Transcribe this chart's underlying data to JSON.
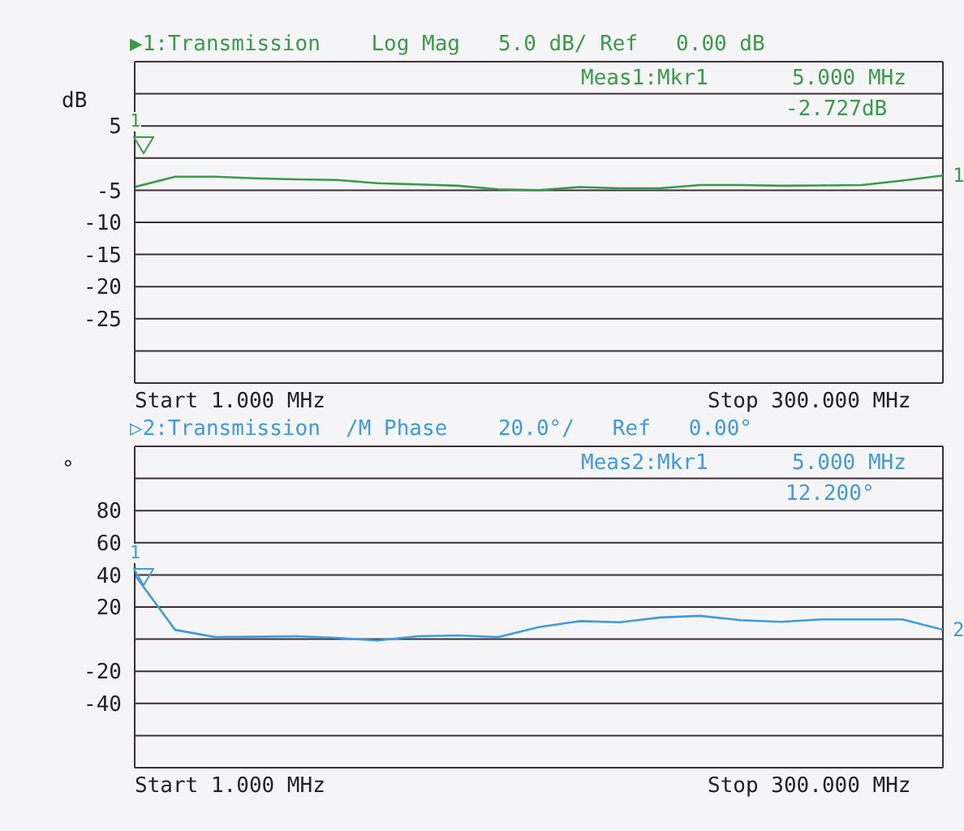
{
  "chart_data": [
    {
      "type": "line",
      "title": "▶1:Transmission    Log Mag   5.0 dB/ Ref   0.00 dB",
      "ylabel": "dB",
      "categories": [
        null,
        null,
        null,
        null,
        null,
        null,
        null,
        null,
        null,
        null,
        null,
        null,
        null,
        null,
        null,
        null,
        null,
        null,
        null,
        null,
        null
      ],
      "ylim": [
        -35,
        15
      ],
      "yticks": [
        {
          "value": 15,
          "label": null
        },
        {
          "value": 10,
          "label": null
        },
        5,
        {
          "value": 0,
          "label": null
        },
        -5,
        -10,
        -15,
        -20,
        -25,
        {
          "value": -30,
          "label": null
        },
        {
          "value": -35,
          "label": null
        }
      ],
      "tick_labels": "y",
      "grid": true,
      "marker": "none",
      "line_style": "solid",
      "series": [
        {
          "name": "1",
          "color": "#3a9a4a",
          "values": [
            -4.5,
            -2.9,
            -2.9,
            -3.15,
            -3.3,
            -3.4,
            -3.9,
            -4.1,
            -4.3,
            -4.85,
            -5.0,
            -4.5,
            -4.7,
            -4.7,
            -4.2,
            -4.2,
            -4.3,
            -4.25,
            -4.2,
            -3.5,
            -2.7
          ]
        }
      ],
      "annotations": [
        "Meas1:Mkr1",
        "5.000 MHz",
        "-2.727dB",
        "Start 1.000 MHz",
        "Stop 300.000 MHz",
        "1"
      ]
    },
    {
      "type": "line",
      "title": "▷2:Transmission  /M Phase    20.0°/   Ref   0.00°",
      "ylabel": "°",
      "categories": [
        null,
        null,
        null,
        null,
        null,
        null,
        null,
        null,
        null,
        null,
        null,
        null,
        null,
        null,
        null,
        null,
        null,
        null,
        null,
        null,
        null
      ],
      "ylim": [
        -80,
        120
      ],
      "yticks": [
        {
          "value": 120,
          "label": null
        },
        {
          "value": 100,
          "label": null
        },
        80,
        60,
        40,
        20,
        {
          "value": 0,
          "label": null
        },
        -20,
        -40,
        {
          "value": -60,
          "label": null
        },
        {
          "value": -80,
          "label": null
        }
      ],
      "tick_labels": "y",
      "grid": true,
      "marker": "none",
      "line_style": "solid",
      "series": [
        {
          "name": "2",
          "color": "#3f9ae0",
          "values": [
            40,
            5.8,
            1.3,
            1.5,
            1.8,
            0.8,
            -0.8,
            1.8,
            2.3,
            1.3,
            7.5,
            11.2,
            10.5,
            13.5,
            14.5,
            11.8,
            10.8,
            12.3,
            12.3,
            12.3,
            5.8
          ]
        }
      ],
      "annotations": [
        "Meas2:Mkr1",
        "5.000 MHz",
        "12.200°",
        "Start 1.000 MHz",
        "Stop 300.000 MHz",
        "1"
      ]
    }
  ]
}
